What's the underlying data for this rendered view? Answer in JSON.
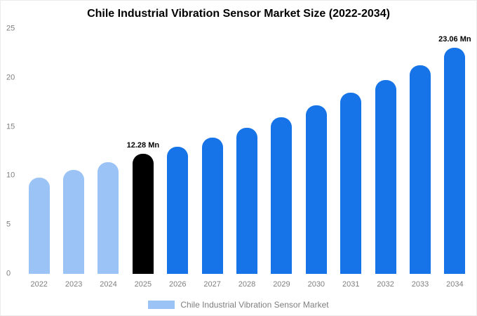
{
  "title": "Chile Industrial Vibration Sensor Market Size (2022-2034)",
  "legend": {
    "label": "Chile Industrial Vibration Sensor Market",
    "swatch_color": "#9cc3f5"
  },
  "chart_data": {
    "type": "bar",
    "title": "Chile Industrial Vibration Sensor Market Size (2022-2034)",
    "categories": [
      "2022",
      "2023",
      "2024",
      "2025",
      "2026",
      "2027",
      "2028",
      "2029",
      "2030",
      "2031",
      "2032",
      "2033",
      "2034"
    ],
    "values": [
      9.8,
      10.6,
      11.4,
      12.28,
      13.0,
      13.9,
      14.9,
      16.0,
      17.2,
      18.5,
      19.8,
      21.3,
      23.06
    ],
    "unit": "Mn",
    "bar_colors": [
      "#9cc3f5",
      "#9cc3f5",
      "#9cc3f5",
      "#000000",
      "#1673e8",
      "#1673e8",
      "#1673e8",
      "#1673e8",
      "#1673e8",
      "#1673e8",
      "#1673e8",
      "#1673e8",
      "#1673e8"
    ],
    "annotations": [
      {
        "category": "2025",
        "text": "12.28 Mn"
      },
      {
        "category": "2034",
        "text": "23.06 Mn"
      }
    ],
    "y_ticks": [
      0,
      5,
      10,
      15,
      20,
      25
    ],
    "ylim": [
      0,
      25
    ],
    "grid": false,
    "legend_position": "bottom"
  }
}
